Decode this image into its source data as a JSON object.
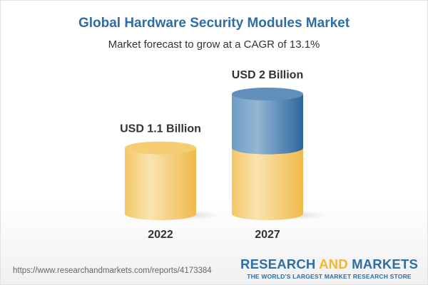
{
  "header": {
    "title": "Global Hardware Security Modules Market",
    "subtitle": "Market forecast to grow at a CAGR of 13.1%"
  },
  "chart_data": {
    "type": "bar",
    "style": "3d-cylinder",
    "title": "Global Hardware Security Modules Market",
    "subtitle": "Market forecast to grow at a CAGR of 13.1%",
    "categories": [
      "2022",
      "2027"
    ],
    "values": [
      1.1,
      2.0
    ],
    "unit": "USD Billion",
    "data_labels": [
      "USD 1.1 Billion",
      "USD 2 Billion"
    ],
    "grid": false,
    "colors": {
      "base": "#f2c25a",
      "growth": "#3f7cb0",
      "title": "#2f6ea5"
    }
  },
  "footer": {
    "url": "https://www.researchandmarkets.com/reports/4173384",
    "logo_line1_a": "RESEARCH ",
    "logo_line1_b": "AND",
    "logo_line1_c": " MARKETS",
    "logo_line2": "THE WORLD'S LARGEST MARKET RESEARCH STORE"
  }
}
